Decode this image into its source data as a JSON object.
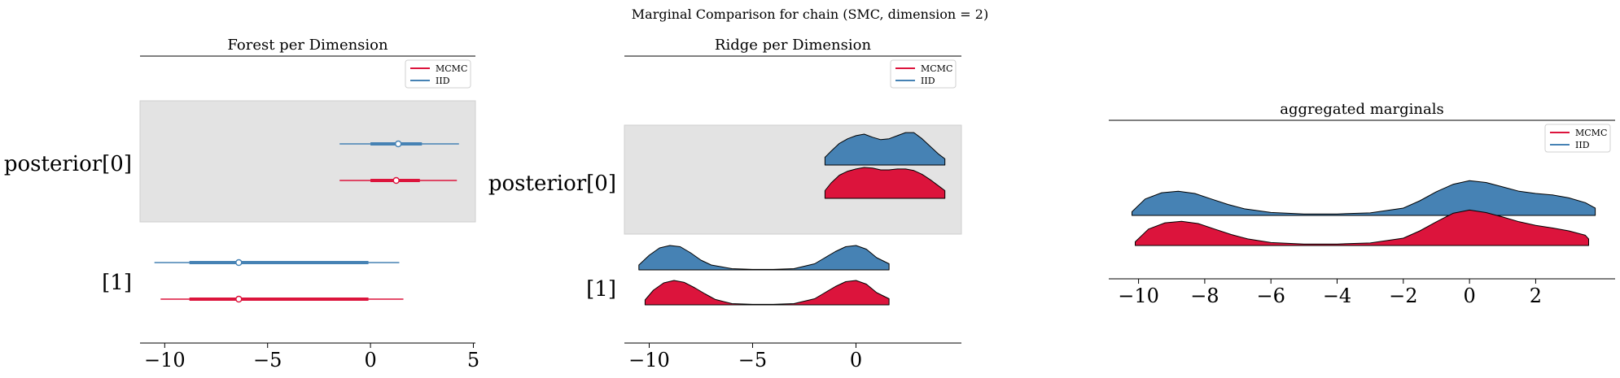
{
  "figure": {
    "suptitle": "Marginal Comparison for chain (SMC, dimension = 2)"
  },
  "legend": {
    "entries": [
      {
        "label": "MCMC",
        "color": "#dc143c"
      },
      {
        "label": "IID",
        "color": "#4682b4"
      }
    ],
    "placement": "top-right"
  },
  "colors": {
    "mcmc": "#dc143c",
    "iid": "#4682b4",
    "shade": "#e3e3e3"
  },
  "chart_data": [
    {
      "type": "forest",
      "title": "Forest per Dimension",
      "xlim": [
        -11.2,
        5.1
      ],
      "xticks": [
        -10,
        -5,
        0,
        5
      ],
      "xtick_labels": [
        "−10",
        "−5",
        "0",
        "5"
      ],
      "rows": [
        {
          "label": "posterior[0]",
          "shaded": true,
          "series": [
            {
              "name": "IID",
              "whisker": [
                -1.5,
                4.3
              ],
              "box": [
                0.0,
                2.5
              ],
              "point": 1.35
            },
            {
              "name": "MCMC",
              "whisker": [
                -1.5,
                4.2
              ],
              "box": [
                0.0,
                2.4
              ],
              "point": 1.25
            }
          ]
        },
        {
          "label": "[1]",
          "shaded": false,
          "series": [
            {
              "name": "IID",
              "whisker": [
                -10.5,
                1.4
              ],
              "box": [
                -8.8,
                -0.1
              ],
              "point": -6.4
            },
            {
              "name": "MCMC",
              "whisker": [
                -10.2,
                1.6
              ],
              "box": [
                -8.8,
                -0.1
              ],
              "point": -6.4
            }
          ]
        }
      ]
    },
    {
      "type": "ridge",
      "title": "Ridge per Dimension",
      "xlim": [
        -11.2,
        5.1
      ],
      "xticks": [
        -10,
        -5,
        0
      ],
      "xtick_labels": [
        "−10",
        "−5",
        "0"
      ],
      "rows": [
        {
          "label": "posterior[0]",
          "shaded": true,
          "series": [
            {
              "name": "IID",
              "x": [
                -1.5,
                -1.2,
                -0.8,
                -0.4,
                0.0,
                0.4,
                0.8,
                1.2,
                1.6,
                2.0,
                2.4,
                2.8,
                3.2,
                3.6,
                4.0,
                4.3
              ],
              "y": [
                0.25,
                0.45,
                0.7,
                0.85,
                0.95,
                1.0,
                0.9,
                0.82,
                0.85,
                0.95,
                1.05,
                1.05,
                0.85,
                0.6,
                0.35,
                0.2
              ]
            },
            {
              "name": "MCMC",
              "x": [
                -1.5,
                -1.2,
                -0.8,
                -0.4,
                0.0,
                0.4,
                0.8,
                1.2,
                1.6,
                2.0,
                2.4,
                2.8,
                3.2,
                3.6,
                4.0,
                4.3
              ],
              "y": [
                0.25,
                0.5,
                0.75,
                0.88,
                0.95,
                1.0,
                0.98,
                0.92,
                0.92,
                0.95,
                0.95,
                0.9,
                0.78,
                0.6,
                0.4,
                0.25
              ]
            }
          ]
        },
        {
          "label": "[1]",
          "shaded": false,
          "series": [
            {
              "name": "IID",
              "x": [
                -10.5,
                -10.0,
                -9.5,
                -9.0,
                -8.5,
                -8.0,
                -7.5,
                -7.0,
                -6.0,
                -5.0,
                -4.0,
                -3.0,
                -2.0,
                -1.5,
                -1.0,
                -0.5,
                0.0,
                0.5,
                1.0,
                1.6
              ],
              "y": [
                0.2,
                0.6,
                0.9,
                1.0,
                0.95,
                0.7,
                0.4,
                0.2,
                0.05,
                0.02,
                0.02,
                0.05,
                0.25,
                0.5,
                0.75,
                0.95,
                1.0,
                0.85,
                0.5,
                0.25
              ]
            },
            {
              "name": "MCMC",
              "x": [
                -10.2,
                -9.8,
                -9.3,
                -8.8,
                -8.3,
                -7.8,
                -7.3,
                -6.8,
                -6.0,
                -5.0,
                -4.0,
                -3.0,
                -2.0,
                -1.5,
                -1.0,
                -0.5,
                0.0,
                0.5,
                1.0,
                1.6
              ],
              "y": [
                0.2,
                0.6,
                0.9,
                1.0,
                0.92,
                0.7,
                0.45,
                0.22,
                0.05,
                0.02,
                0.02,
                0.05,
                0.25,
                0.5,
                0.75,
                0.95,
                1.0,
                0.85,
                0.5,
                0.25
              ]
            }
          ]
        }
      ]
    },
    {
      "type": "ridge",
      "title": "aggregated marginals",
      "xlim": [
        -10.9,
        4.4
      ],
      "xticks": [
        -10,
        -8,
        -6,
        -4,
        -2,
        0,
        2
      ],
      "xtick_labels": [
        "−10",
        "−8",
        "−6",
        "−4",
        "−2",
        "0",
        "2"
      ],
      "rows": [
        {
          "label": "",
          "shaded": false,
          "series": [
            {
              "name": "IID",
              "x": [
                -10.2,
                -9.8,
                -9.3,
                -8.8,
                -8.3,
                -7.8,
                -7.3,
                -6.8,
                -6.0,
                -5.0,
                -4.0,
                -3.0,
                -2.0,
                -1.5,
                -1.0,
                -0.5,
                0.0,
                0.5,
                1.0,
                1.5,
                2.0,
                2.5,
                3.0,
                3.5,
                3.8
              ],
              "y": [
                0.1,
                0.45,
                0.62,
                0.66,
                0.6,
                0.45,
                0.3,
                0.18,
                0.08,
                0.04,
                0.04,
                0.07,
                0.2,
                0.4,
                0.65,
                0.85,
                0.95,
                0.9,
                0.78,
                0.66,
                0.6,
                0.56,
                0.48,
                0.35,
                0.2
              ]
            },
            {
              "name": "MCMC",
              "x": [
                -10.1,
                -9.7,
                -9.2,
                -8.7,
                -8.2,
                -7.7,
                -7.2,
                -6.7,
                -6.0,
                -5.0,
                -4.0,
                -3.0,
                -2.0,
                -1.5,
                -1.0,
                -0.5,
                0.0,
                0.5,
                1.0,
                1.5,
                2.0,
                2.5,
                3.0,
                3.5,
                3.6
              ],
              "y": [
                0.1,
                0.45,
                0.62,
                0.66,
                0.6,
                0.45,
                0.3,
                0.18,
                0.08,
                0.04,
                0.04,
                0.07,
                0.2,
                0.4,
                0.65,
                0.88,
                0.97,
                0.9,
                0.78,
                0.65,
                0.55,
                0.48,
                0.4,
                0.28,
                0.18
              ]
            }
          ]
        }
      ]
    }
  ]
}
